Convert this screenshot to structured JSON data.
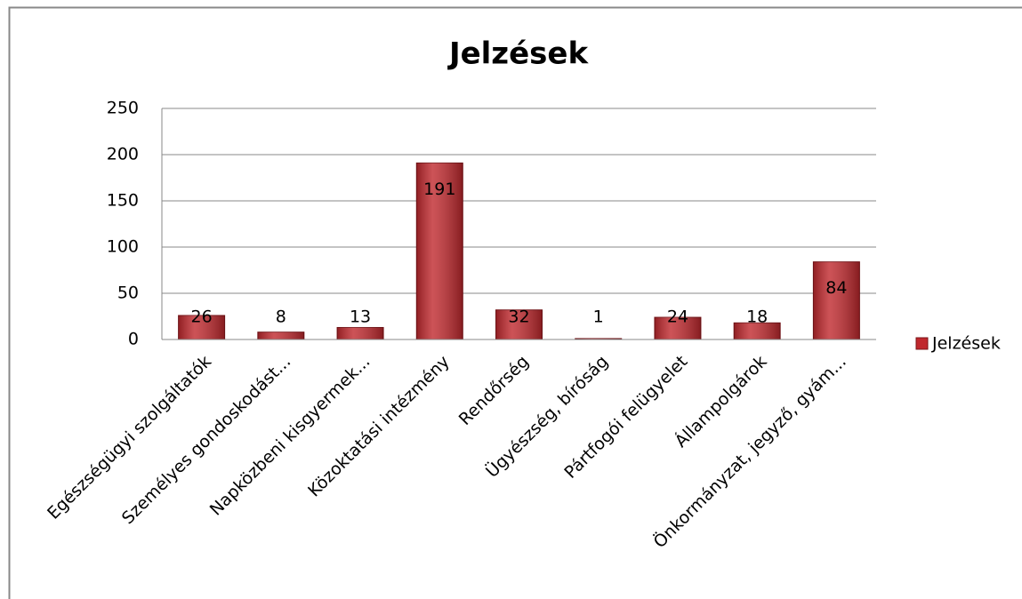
{
  "chart_data": {
    "type": "bar",
    "title": "Jelzések",
    "categories": [
      "Egészségügyi szolgáltatók",
      "Személyes gondoskodást...",
      "Napközbeni kisgyermek...",
      "Közoktatási intézmény",
      "Rendőrség",
      "Ügyészség, bíróság",
      "Pártfogói felügyelet",
      "Állampolgárok",
      "Önkormányzat, jegyző, gyám..."
    ],
    "series": [
      {
        "name": "Jelzések",
        "color": "#c0282d",
        "values": [
          26,
          8,
          13,
          191,
          32,
          1,
          24,
          18,
          84
        ]
      }
    ],
    "ylim": [
      0,
      250
    ],
    "yticks": [
      0,
      50,
      100,
      150,
      200,
      250
    ],
    "grid": true,
    "legend": "right"
  }
}
